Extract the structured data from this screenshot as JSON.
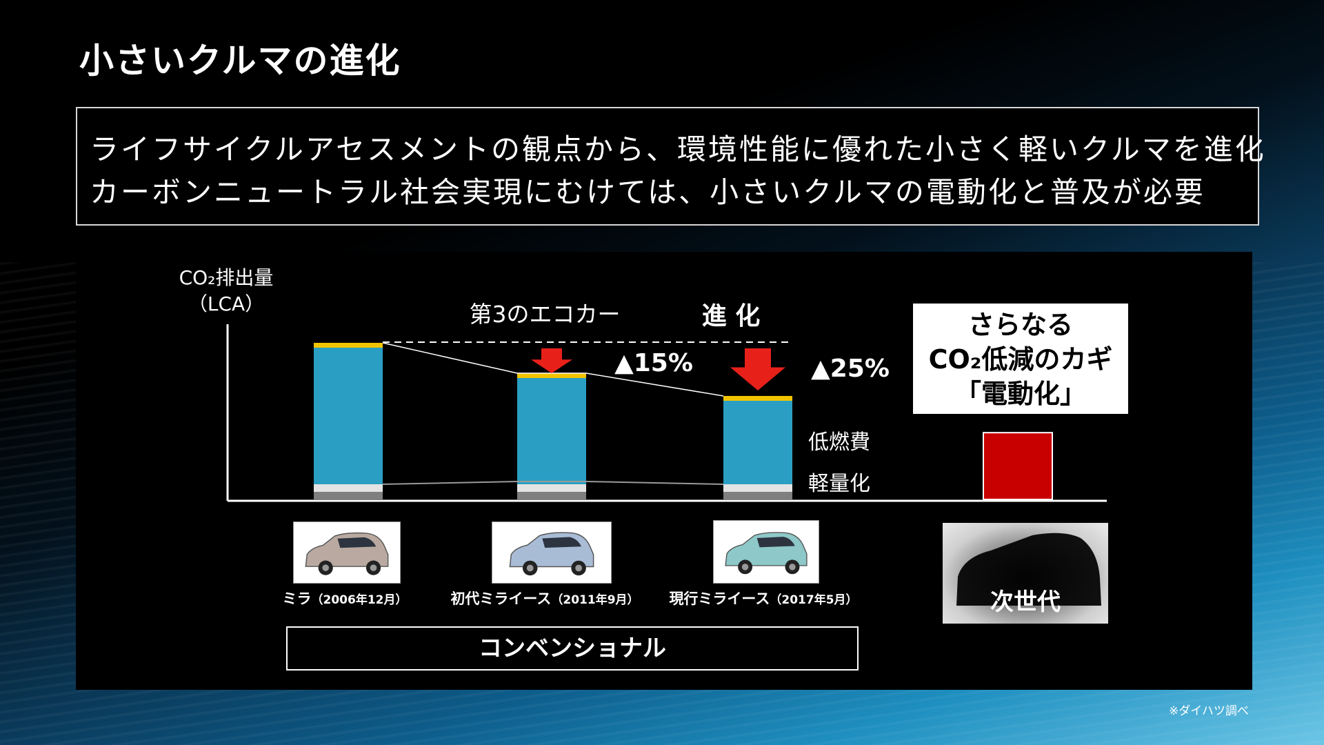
{
  "slide": {
    "title": "小さいクルマの進化",
    "lead_lines": [
      "ライフサイクルアセスメントの観点から、環境性能に優れた小さく軽いクルマを進化",
      "カーボンニュートラル社会実現にむけては、小さいクルマの電動化と普及が必要"
    ],
    "callout_lines": [
      "さらなる",
      "CO₂低減のカギ",
      "「電動化」"
    ],
    "nextgen_label": "次世代",
    "conventional_label": "コンベンショナル",
    "source_note": "※ダイハツ調べ",
    "cars": [
      {
        "name": "ミラ",
        "date": "（2006年12月）",
        "color": "#b9a9a0",
        "photo_name": "car-photo-mira"
      },
      {
        "name": "初代ミライース",
        "date": "（2011年9月）",
        "color": "#a9bcd6",
        "photo_name": "car-photo-mira-es-1st"
      },
      {
        "name": "現行ミライース",
        "date": "（2017年5月）",
        "color": "#8ec8c9",
        "photo_name": "car-photo-mira-es-current"
      }
    ]
  },
  "colors": {
    "fuel_bar": "#2a9fc3",
    "weight_light": "#e4e4e4",
    "weight_dark": "#7f7f7f",
    "cap": "#f2c400",
    "arrow": "#e8201a",
    "ev_bar": "#c80000"
  },
  "chart_data": {
    "type": "bar",
    "stacked": true,
    "ylabel_lines": [
      "CO₂排出量",
      "（LCA）"
    ],
    "categories": [
      "ミラ",
      "初代ミライース",
      "現行ミライース",
      "次世代"
    ],
    "series": [
      {
        "name": "軽量化",
        "values": [
          10,
          10,
          10,
          null
        ]
      },
      {
        "name": "低燃費",
        "values": [
          90,
          70,
          55,
          null
        ]
      },
      {
        "name": "",
        "values": [
          null,
          null,
          null,
          44
        ]
      }
    ],
    "annotations": {
      "eco_car": "第3のエコカー",
      "evolution": "進 化",
      "reduction_1": "▲15%",
      "reduction_2": "▲25%"
    },
    "ylim": [
      0,
      100
    ],
    "grid": false,
    "legend": "right"
  }
}
